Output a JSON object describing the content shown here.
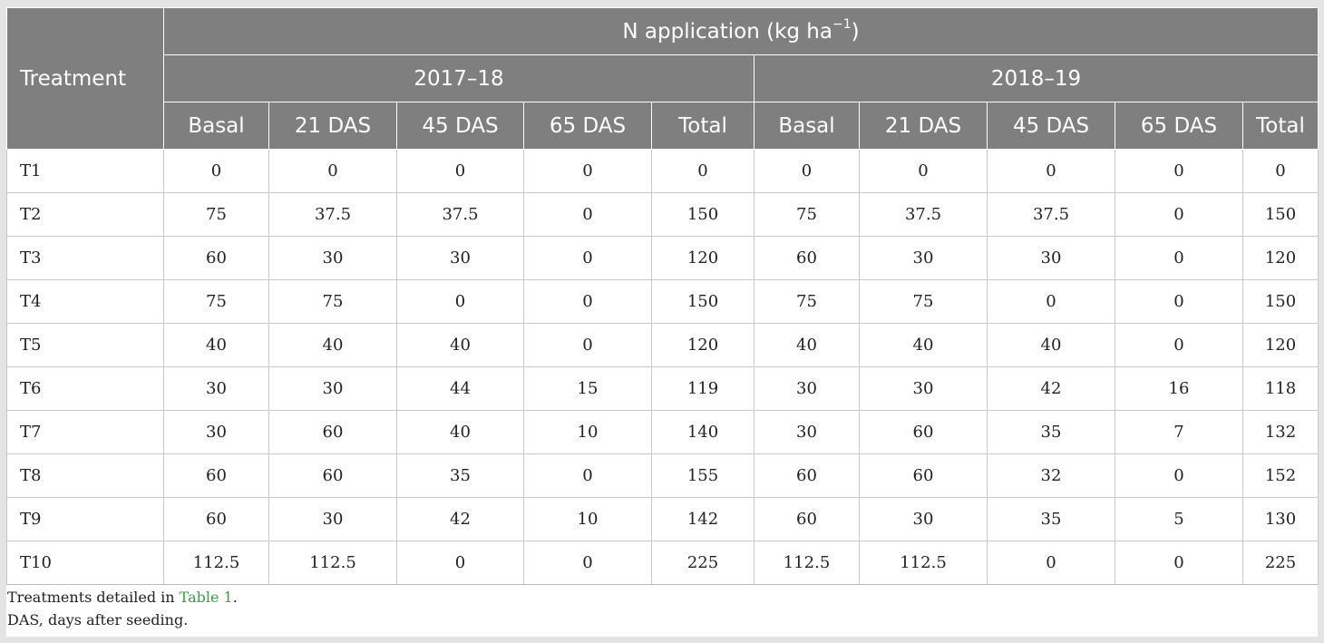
{
  "table": {
    "header": {
      "treatment": "Treatment",
      "n_application": "N application (kg ha",
      "n_application_sup": "−1",
      "n_application_close": ")",
      "years": [
        "2017–18",
        "2018–19"
      ],
      "subcols": [
        "Basal",
        "21 DAS",
        "45 DAS",
        "65 DAS",
        "Total"
      ]
    },
    "rows": [
      {
        "label": "T1",
        "y1": [
          "0",
          "0",
          "0",
          "0",
          "0"
        ],
        "y2": [
          "0",
          "0",
          "0",
          "0",
          "0"
        ]
      },
      {
        "label": "T2",
        "y1": [
          "75",
          "37.5",
          "37.5",
          "0",
          "150"
        ],
        "y2": [
          "75",
          "37.5",
          "37.5",
          "0",
          "150"
        ]
      },
      {
        "label": "T3",
        "y1": [
          "60",
          "30",
          "30",
          "0",
          "120"
        ],
        "y2": [
          "60",
          "30",
          "30",
          "0",
          "120"
        ]
      },
      {
        "label": "T4",
        "y1": [
          "75",
          "75",
          "0",
          "0",
          "150"
        ],
        "y2": [
          "75",
          "75",
          "0",
          "0",
          "150"
        ]
      },
      {
        "label": "T5",
        "y1": [
          "40",
          "40",
          "40",
          "0",
          "120"
        ],
        "y2": [
          "40",
          "40",
          "40",
          "0",
          "120"
        ]
      },
      {
        "label": "T6",
        "y1": [
          "30",
          "30",
          "44",
          "15",
          "119"
        ],
        "y2": [
          "30",
          "30",
          "42",
          "16",
          "118"
        ]
      },
      {
        "label": "T7",
        "y1": [
          "30",
          "60",
          "40",
          "10",
          "140"
        ],
        "y2": [
          "30",
          "60",
          "35",
          "7",
          "132"
        ]
      },
      {
        "label": "T8",
        "y1": [
          "60",
          "60",
          "35",
          "0",
          "155"
        ],
        "y2": [
          "60",
          "60",
          "32",
          "0",
          "152"
        ]
      },
      {
        "label": "T9",
        "y1": [
          "60",
          "30",
          "42",
          "10",
          "142"
        ],
        "y2": [
          "60",
          "30",
          "35",
          "5",
          "130"
        ]
      },
      {
        "label": "T10",
        "y1": [
          "112.5",
          "112.5",
          "0",
          "0",
          "225"
        ],
        "y2": [
          "112.5",
          "112.5",
          "0",
          "0",
          "225"
        ]
      }
    ]
  },
  "footnotes": {
    "line1_prefix": "Treatments detailed in ",
    "line1_link": "Table 1",
    "line1_suffix": ".",
    "line2": "DAS, days after seeding."
  },
  "colors": {
    "header_bg": "#7f7f7f",
    "header_text": "#ffffff",
    "link": "#3a9b46",
    "page_bg": "#e4e4e4"
  }
}
